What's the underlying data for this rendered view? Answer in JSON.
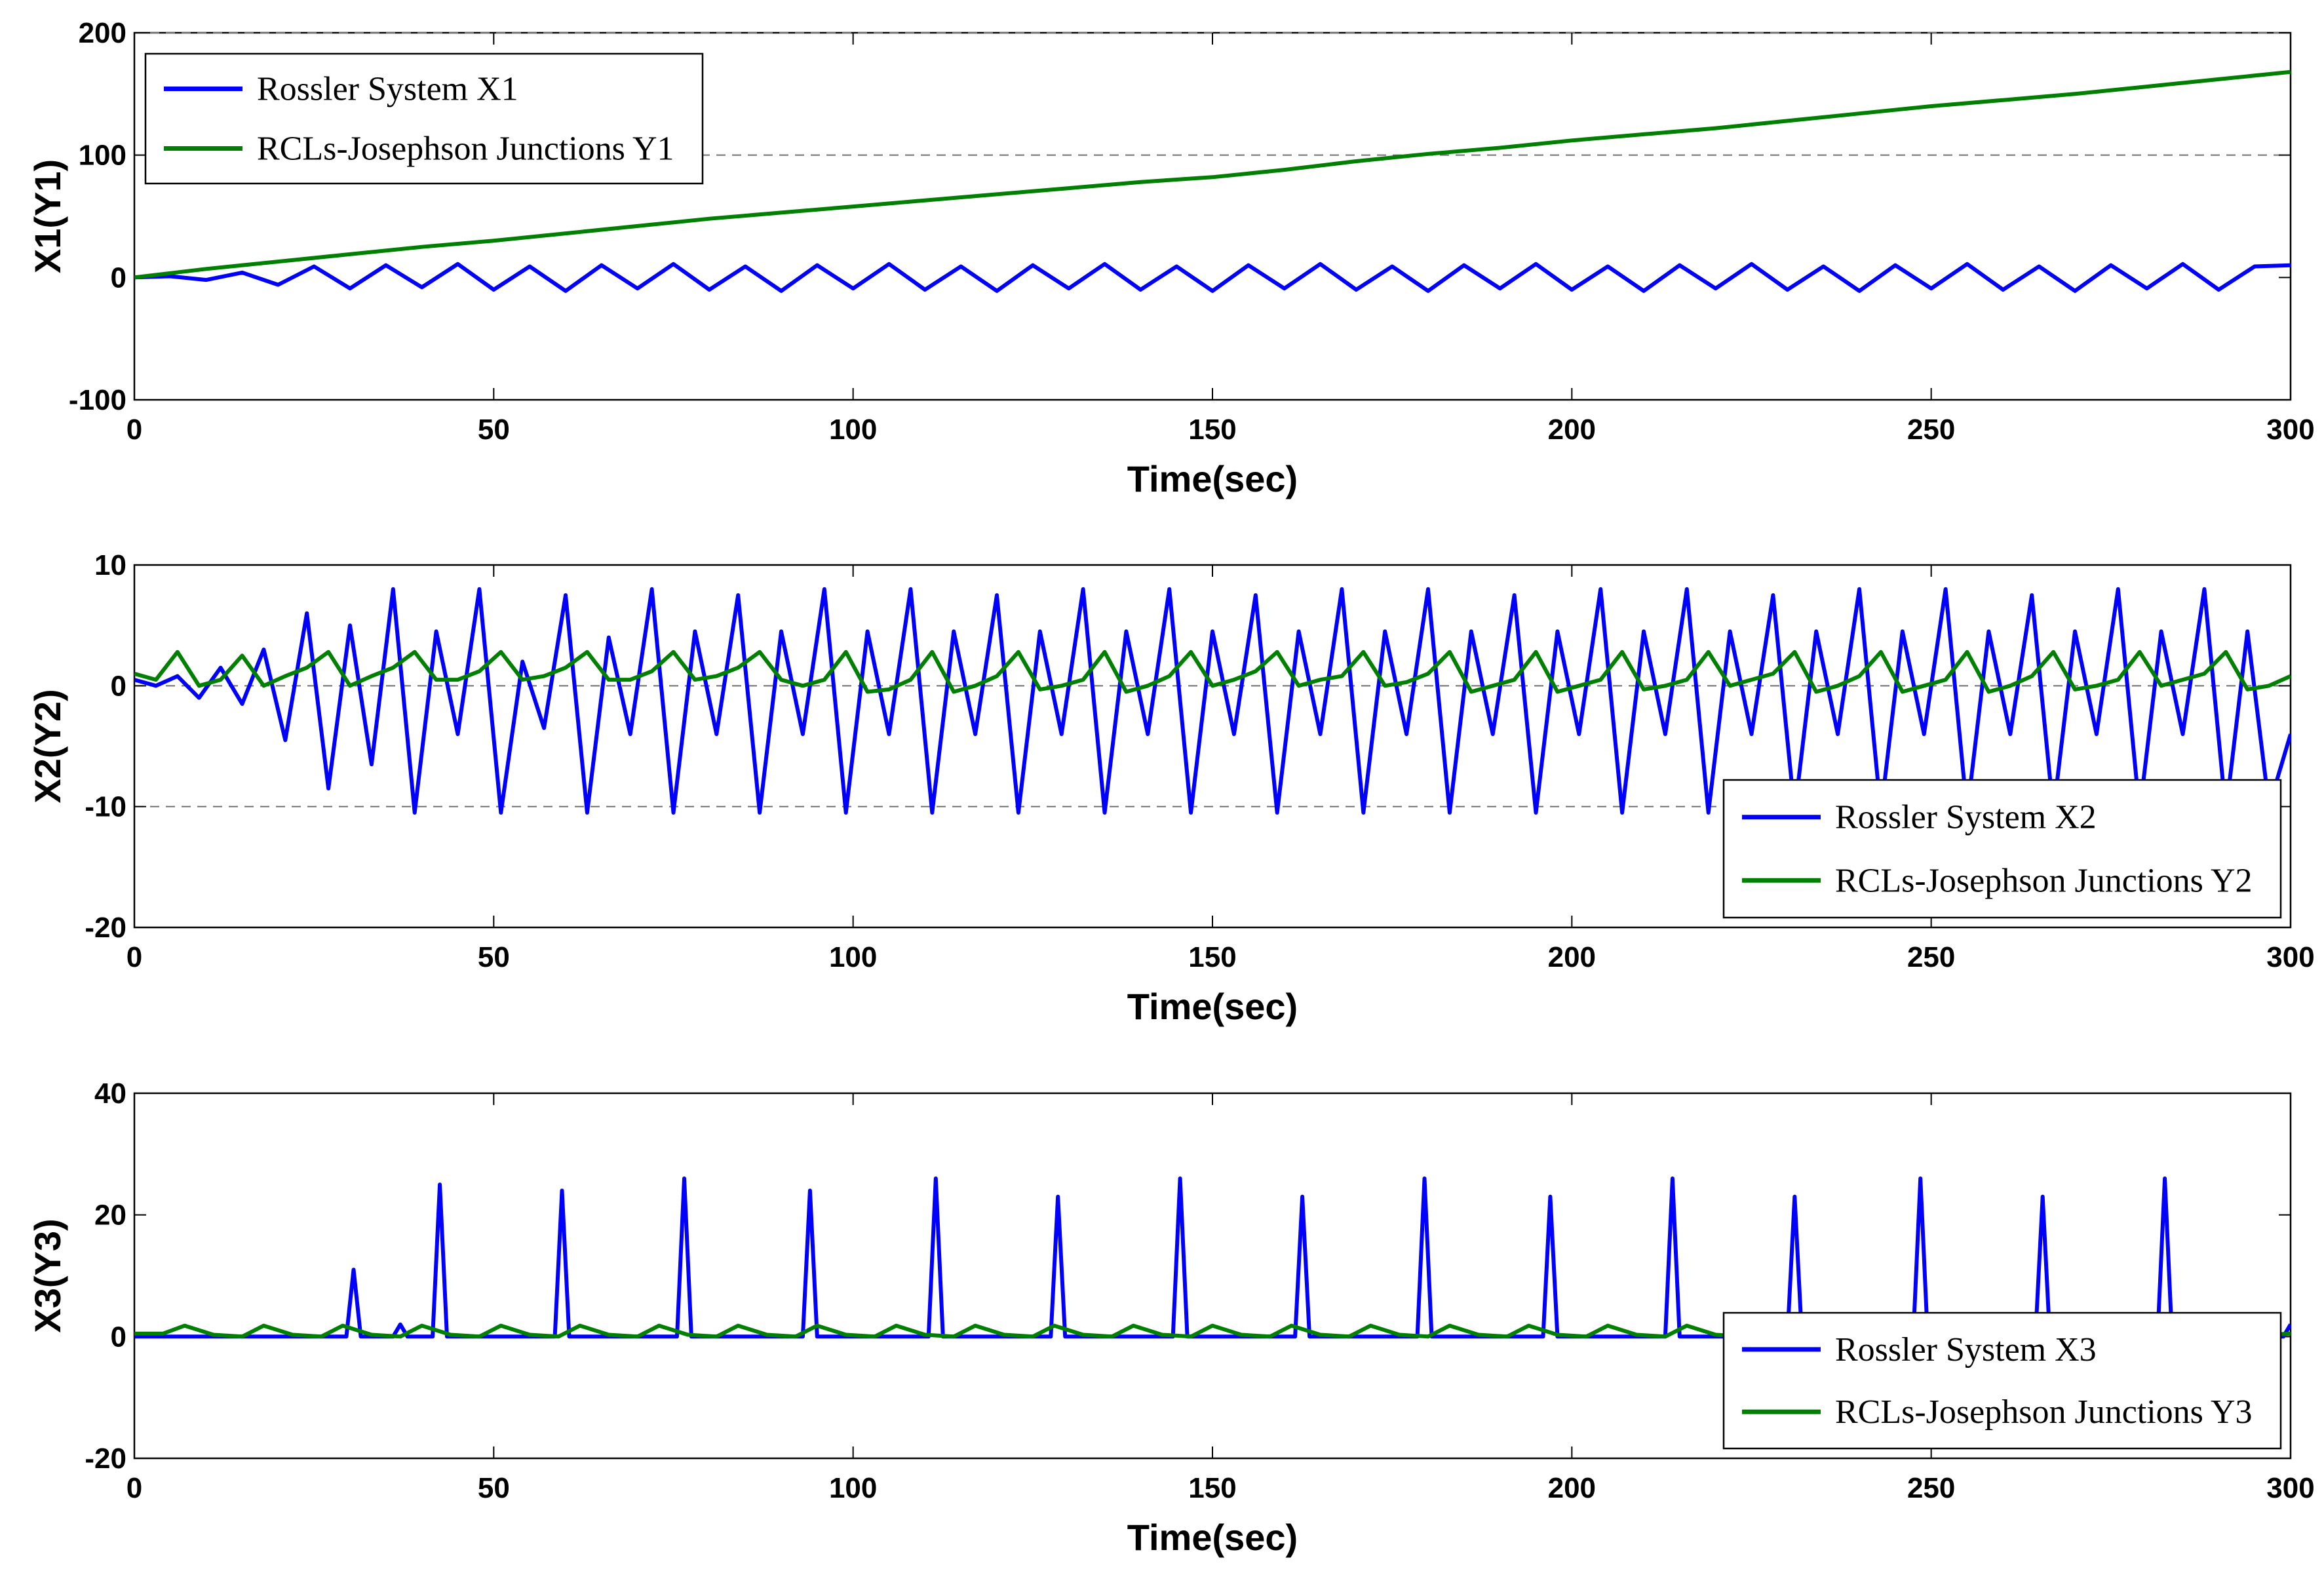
{
  "colors": {
    "rossler": "#0000ff",
    "rcl": "#008000"
  },
  "chart_data": [
    {
      "type": "line",
      "title": "",
      "xlabel": "Time(sec)",
      "ylabel": "X1(Y1)",
      "xlim": [
        0,
        300
      ],
      "ylim": [
        -100,
        200
      ],
      "xticks": [
        0,
        50,
        100,
        150,
        200,
        250,
        300
      ],
      "xtick_labels": [
        "0",
        "50",
        "100",
        "150",
        "200",
        "250",
        "300"
      ],
      "yticks": [
        -100,
        0,
        100,
        200
      ],
      "ytick_labels": [
        "-100",
        "0",
        "100",
        "200"
      ],
      "grid_y": [
        100,
        200
      ],
      "legend": "top-left",
      "series": [
        {
          "name": "Rossler System X1",
          "color": "#0000ff",
          "x": [
            0,
            5,
            10,
            15,
            20,
            25,
            30,
            35,
            40,
            45,
            50,
            55,
            60,
            65,
            70,
            75,
            80,
            85,
            90,
            95,
            100,
            105,
            110,
            115,
            120,
            125,
            130,
            135,
            140,
            145,
            150,
            155,
            160,
            165,
            170,
            175,
            180,
            185,
            190,
            195,
            200,
            205,
            210,
            215,
            220,
            225,
            230,
            235,
            240,
            245,
            250,
            255,
            260,
            265,
            270,
            275,
            280,
            285,
            290,
            295,
            300
          ],
          "values": [
            0,
            1,
            -2,
            4,
            -6,
            9,
            -9,
            10,
            -8,
            11,
            -10,
            9,
            -11,
            10,
            -9,
            11,
            -10,
            9,
            -11,
            10,
            -9,
            11,
            -10,
            9,
            -11,
            10,
            -9,
            11,
            -10,
            9,
            -11,
            10,
            -9,
            11,
            -10,
            9,
            -11,
            10,
            -9,
            11,
            -10,
            9,
            -11,
            10,
            -9,
            11,
            -10,
            9,
            -11,
            10,
            -9,
            11,
            -10,
            9,
            -11,
            10,
            -9,
            11,
            -10,
            9,
            10
          ]
        },
        {
          "name": "RCLs-Josephson Junctions Y1",
          "color": "#008000",
          "x": [
            0,
            10,
            20,
            30,
            40,
            50,
            60,
            70,
            80,
            90,
            100,
            110,
            120,
            130,
            140,
            150,
            160,
            170,
            180,
            190,
            200,
            210,
            220,
            230,
            240,
            250,
            260,
            270,
            280,
            290,
            300
          ],
          "values": [
            0,
            7,
            13,
            19,
            25,
            30,
            36,
            42,
            48,
            53,
            58,
            63,
            68,
            73,
            78,
            82,
            88,
            95,
            101,
            106,
            112,
            117,
            122,
            128,
            134,
            140,
            145,
            150,
            156,
            162,
            168
          ]
        }
      ]
    },
    {
      "type": "line",
      "title": "",
      "xlabel": "Time(sec)",
      "ylabel": "X2(Y2)",
      "xlim": [
        0,
        300
      ],
      "ylim": [
        -20,
        10
      ],
      "xticks": [
        0,
        50,
        100,
        150,
        200,
        250,
        300
      ],
      "xtick_labels": [
        "0",
        "50",
        "100",
        "150",
        "200",
        "250",
        "300"
      ],
      "yticks": [
        -20,
        -10,
        0,
        10
      ],
      "ytick_labels": [
        "-20",
        "-10",
        "0",
        "10"
      ],
      "grid_y": [
        -10,
        0
      ],
      "legend": "bottom-right",
      "series": [
        {
          "name": "Rossler System X2",
          "color": "#0000ff",
          "x": [
            0,
            3,
            6,
            9,
            12,
            15,
            18,
            21,
            24,
            27,
            30,
            33,
            36,
            39,
            42,
            45,
            48,
            51,
            54,
            57,
            60,
            63,
            66,
            69,
            72,
            75,
            78,
            81,
            84,
            87,
            90,
            93,
            96,
            99,
            102,
            105,
            108,
            111,
            114,
            117,
            120,
            123,
            126,
            129,
            132,
            135,
            138,
            141,
            144,
            147,
            150,
            153,
            156,
            159,
            162,
            165,
            168,
            171,
            174,
            177,
            180,
            183,
            186,
            189,
            192,
            195,
            198,
            201,
            204,
            207,
            210,
            213,
            216,
            219,
            222,
            225,
            228,
            231,
            234,
            237,
            240,
            243,
            246,
            249,
            252,
            255,
            258,
            261,
            264,
            267,
            270,
            273,
            276,
            279,
            282,
            285,
            288,
            291,
            294,
            297,
            300
          ],
          "values": [
            0.5,
            0,
            0.8,
            -1,
            1.5,
            -1.5,
            3,
            -4.5,
            6,
            -8.5,
            5,
            -6.5,
            8,
            -10.5,
            4.5,
            -4,
            8,
            -10.5,
            2,
            -3.5,
            7.5,
            -10.5,
            4,
            -4,
            8,
            -10.5,
            4.5,
            -4,
            7.5,
            -10.5,
            4.5,
            -4,
            8,
            -10.5,
            4.5,
            -4,
            8,
            -10.5,
            4.5,
            -4,
            7.5,
            -10.5,
            4.5,
            -4,
            8,
            -10.5,
            4.5,
            -4,
            8,
            -10.5,
            4.5,
            -4,
            7.5,
            -10.5,
            4.5,
            -4,
            8,
            -10.5,
            4.5,
            -4,
            8,
            -10.5,
            4.5,
            -4,
            7.5,
            -10.5,
            4.5,
            -4,
            8,
            -10.5,
            4.5,
            -4,
            8,
            -10.5,
            4.5,
            -4,
            7.5,
            -10.5,
            4.5,
            -4,
            8,
            -10.5,
            4.5,
            -4,
            8,
            -10.5,
            4.5,
            -4,
            7.5,
            -10.5,
            4.5,
            -4,
            8,
            -10.5,
            4.5,
            -4,
            8,
            -10.5,
            4.5,
            -10,
            -4
          ]
        },
        {
          "name": "RCLs-Josephson Junctions Y2",
          "color": "#008000",
          "x": [
            0,
            3,
            6,
            9,
            12,
            15,
            18,
            21,
            24,
            27,
            30,
            33,
            36,
            39,
            42,
            45,
            48,
            51,
            54,
            57,
            60,
            63,
            66,
            69,
            72,
            75,
            78,
            81,
            84,
            87,
            90,
            93,
            96,
            99,
            102,
            105,
            108,
            111,
            114,
            117,
            120,
            123,
            126,
            129,
            132,
            135,
            138,
            141,
            144,
            147,
            150,
            153,
            156,
            159,
            162,
            165,
            168,
            171,
            174,
            177,
            180,
            183,
            186,
            189,
            192,
            195,
            198,
            201,
            204,
            207,
            210,
            213,
            216,
            219,
            222,
            225,
            228,
            231,
            234,
            237,
            240,
            243,
            246,
            249,
            252,
            255,
            258,
            261,
            264,
            267,
            270,
            273,
            276,
            279,
            282,
            285,
            288,
            291,
            294,
            297,
            300
          ],
          "values": [
            1,
            0.5,
            2.8,
            0,
            0.5,
            2.5,
            0,
            0.8,
            1.5,
            2.8,
            0,
            0.8,
            1.5,
            2.8,
            0.5,
            0.5,
            1.2,
            2.8,
            0.5,
            0.8,
            1.5,
            2.8,
            0.5,
            0.5,
            1.2,
            2.8,
            0.5,
            0.8,
            1.5,
            2.8,
            0.5,
            0,
            0.5,
            2.8,
            -0.5,
            -0.3,
            0.5,
            2.8,
            -0.5,
            0,
            0.8,
            2.8,
            -0.3,
            0,
            0.5,
            2.8,
            -0.5,
            0,
            0.8,
            2.8,
            0,
            0.5,
            1.2,
            2.8,
            0,
            0.5,
            0.8,
            2.8,
            0,
            0.3,
            1,
            2.8,
            -0.5,
            0,
            0.5,
            2.8,
            -0.5,
            0,
            0.5,
            2.8,
            -0.3,
            0,
            0.5,
            2.8,
            0,
            0.5,
            1,
            2.8,
            -0.5,
            0,
            0.8,
            2.8,
            -0.5,
            0,
            0.5,
            2.8,
            -0.5,
            0,
            0.8,
            2.8,
            -0.3,
            0,
            0.5,
            2.8,
            0,
            0.5,
            1,
            2.8,
            -0.3,
            0,
            0.8
          ]
        }
      ]
    },
    {
      "type": "line",
      "title": "",
      "xlabel": "Time(sec)",
      "ylabel": "X3(Y3)",
      "xlim": [
        0,
        300
      ],
      "ylim": [
        -20,
        40
      ],
      "xticks": [
        0,
        50,
        100,
        150,
        200,
        250,
        300
      ],
      "xtick_labels": [
        "0",
        "50",
        "100",
        "150",
        "200",
        "250",
        "300"
      ],
      "yticks": [
        -20,
        0,
        20,
        40
      ],
      "ytick_labels": [
        "-20",
        "0",
        "20",
        "40"
      ],
      "grid_y": [],
      "legend": "bottom-right",
      "series": [
        {
          "name": "Rossler System X3",
          "color": "#0000ff",
          "x": [
            0,
            29.5,
            30.5,
            31.5,
            36,
            37,
            38,
            41.5,
            42.5,
            43.5,
            58.5,
            59.5,
            60.5,
            75.5,
            76.5,
            77.5,
            93,
            94,
            95,
            110.5,
            111.5,
            112.5,
            127.5,
            128.5,
            129.5,
            144.5,
            145.5,
            146.5,
            161.5,
            162.5,
            163.5,
            178.5,
            179.5,
            180.5,
            196,
            197,
            198,
            213,
            214,
            215,
            230,
            231,
            232,
            247.5,
            248.5,
            249.5,
            264.5,
            265.5,
            266.5,
            281.5,
            282.5,
            283.5,
            299,
            300
          ],
          "values": [
            0,
            0,
            11,
            0,
            0,
            2,
            0,
            0,
            25,
            0,
            0,
            24,
            0,
            0,
            26,
            0,
            0,
            24,
            0,
            0,
            26,
            0,
            0,
            23,
            0,
            0,
            26,
            0,
            0,
            23,
            0,
            0,
            26,
            0,
            0,
            23,
            0,
            0,
            26,
            0,
            0,
            23,
            0,
            0,
            26,
            0,
            0,
            23,
            0,
            0,
            26,
            0,
            0,
            2
          ]
        },
        {
          "name": "RCLs-Josephson Junctions Y3",
          "color": "#008000",
          "x": [
            0,
            4,
            7,
            11,
            15,
            18,
            22,
            26,
            29,
            33,
            37,
            40,
            44,
            48,
            51,
            55,
            59,
            62,
            66,
            70,
            73,
            77,
            81,
            84,
            88,
            92,
            95,
            99,
            103,
            106,
            110,
            114,
            117,
            121,
            125,
            128,
            132,
            136,
            139,
            143,
            147,
            150,
            154,
            158,
            161,
            165,
            169,
            172,
            176,
            180,
            183,
            187,
            191,
            194,
            198,
            202,
            205,
            209,
            213,
            216,
            220,
            224,
            227,
            231,
            235,
            238,
            242,
            246,
            249,
            253,
            257,
            260,
            264,
            268,
            271,
            275,
            279,
            282,
            286,
            290,
            293,
            297,
            300
          ],
          "values": [
            0.5,
            0.5,
            1.8,
            0.3,
            0,
            1.8,
            0.3,
            0,
            1.8,
            0.3,
            0,
            1.8,
            0.3,
            0,
            1.8,
            0.3,
            0,
            1.8,
            0.3,
            0,
            1.8,
            0.3,
            0,
            1.8,
            0.3,
            0,
            1.8,
            0.3,
            0,
            1.8,
            0.3,
            0,
            1.8,
            0.3,
            0,
            1.8,
            0.3,
            0,
            1.8,
            0.3,
            0,
            1.8,
            0.3,
            0,
            1.8,
            0.3,
            0,
            1.8,
            0.3,
            0,
            1.8,
            0.3,
            0,
            1.8,
            0.3,
            0,
            1.8,
            0.3,
            0,
            1.8,
            0.3,
            0,
            1.8,
            0.3,
            0,
            1.8,
            0.3,
            0,
            1.8,
            0.3,
            0,
            1.8,
            0.3,
            0,
            1.8,
            0.3,
            0,
            1.8,
            0.3,
            0,
            1.8,
            0.3,
            0.5
          ]
        }
      ]
    }
  ]
}
